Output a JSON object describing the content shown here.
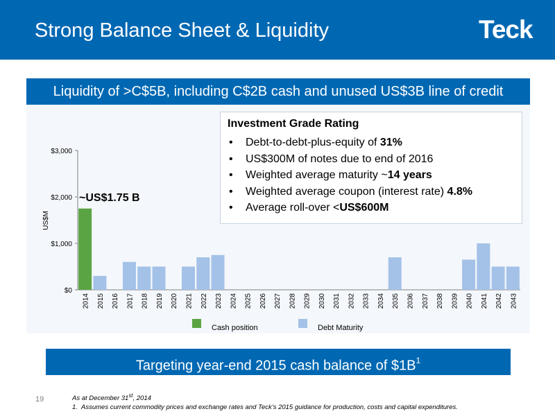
{
  "header": {
    "title": "Strong Balance Sheet & Liquidity",
    "logo_text": "Teck",
    "color": "#0068b3"
  },
  "banner_top": "Liquidity of >C$5B, including C$2B cash and unused US$3B line of credit",
  "banner_bottom": {
    "text": "Targeting year-end 2015 cash balance of $1B",
    "superscript": "1"
  },
  "rating_box": {
    "title": "Investment Grade Rating",
    "bullets": [
      {
        "pre": "Debt-to-debt-plus-equity of ",
        "bold": "31%"
      },
      {
        "pre": "US$300M of notes due to end of 2016",
        "bold": ""
      },
      {
        "pre": "Weighted average maturity ~",
        "bold": "14 years"
      },
      {
        "pre": "Weighted average coupon (interest rate) ",
        "bold": "4.8%"
      },
      {
        "pre": "Average roll-over <",
        "bold": "US$600M"
      }
    ]
  },
  "chart_data": {
    "type": "bar",
    "ylabel": "US$M",
    "ylim": [
      0,
      3000
    ],
    "yticks": [
      {
        "value": 0,
        "label": "$0"
      },
      {
        "value": 1000,
        "label": "$1,000"
      },
      {
        "value": 2000,
        "label": "$2,000"
      },
      {
        "value": 3000,
        "label": "$3,000"
      }
    ],
    "grid": false,
    "legend_position": "bottom",
    "categories": [
      "2014",
      "2015",
      "2016",
      "2017",
      "2018",
      "2019",
      "2020",
      "2021",
      "2022",
      "2023",
      "2024",
      "2025",
      "2026",
      "2027",
      "2028",
      "2029",
      "2030",
      "2031",
      "2032",
      "2033",
      "2034",
      "2035",
      "2036",
      "2037",
      "2038",
      "2039",
      "2040",
      "2041",
      "2042",
      "2043"
    ],
    "series": [
      {
        "name": "Cash position",
        "color": "#5aa444",
        "values": [
          1750,
          0,
          0,
          0,
          0,
          0,
          0,
          0,
          0,
          0,
          0,
          0,
          0,
          0,
          0,
          0,
          0,
          0,
          0,
          0,
          0,
          0,
          0,
          0,
          0,
          0,
          0,
          0,
          0,
          0
        ]
      },
      {
        "name": "Debt Maturity",
        "color": "#a4c2e8",
        "values": [
          0,
          300,
          0,
          600,
          500,
          500,
          0,
          500,
          700,
          750,
          0,
          0,
          0,
          0,
          0,
          0,
          0,
          0,
          0,
          0,
          0,
          700,
          0,
          0,
          0,
          0,
          650,
          1000,
          500,
          500
        ]
      }
    ],
    "annotations": [
      {
        "text": "~US$1.75 B",
        "category": "2014",
        "value": 1750
      }
    ]
  },
  "footnotes": {
    "as_at_pre": "As at December 31",
    "as_at_sup": "st",
    "as_at_post": ", 2014",
    "note_number": "1.",
    "note_text": "Assumes current commodity prices and exchange rates and Teck’s 2015 guidance for production, costs and capital expenditures."
  },
  "page_number": "19"
}
